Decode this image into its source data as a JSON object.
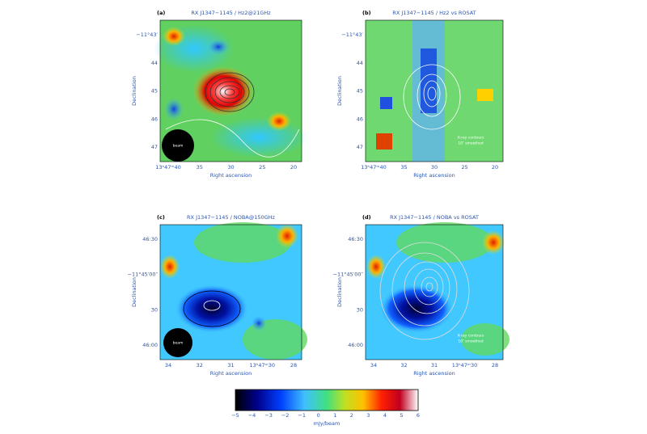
{
  "panels": [
    {
      "label": "(a)",
      "title": "RX J1347−1145 / Hz2@21GHz",
      "xlabel": "Right ascension",
      "ylabel": "Declination",
      "xticks": [
        "13ʰ47ᵐ40",
        "35",
        "30",
        "25",
        "20"
      ],
      "yticks": [
        "−11°43′",
        "44",
        "45",
        "46",
        "47"
      ],
      "notes": [
        "beam"
      ]
    },
    {
      "label": "(b)",
      "title": "RX J1347−1145 / Hz2 vs ROSAT",
      "xlabel": "Right ascension",
      "ylabel": "Declination",
      "xticks": [
        "13ʰ47ᵐ40",
        "35",
        "30",
        "25",
        "20"
      ],
      "yticks": [
        "−11°43′",
        "44",
        "45",
        "46",
        "47"
      ],
      "notes": [
        "X-ray contours",
        "10″ smoothed"
      ]
    },
    {
      "label": "(c)",
      "title": "RX J1347−1145 / NOBA@150GHz",
      "xlabel": "Right ascension",
      "ylabel": "Declination",
      "xticks": [
        "34",
        "32",
        "31",
        "13ʰ47ᵐ30",
        "28"
      ],
      "yticks": [
        "46:30",
        "−11°45′00″",
        "30",
        "46:00"
      ],
      "notes": [
        "beam"
      ]
    },
    {
      "label": "(d)",
      "title": "RX J1347−1145 / NOBA vs ROSAT",
      "xlabel": "Right ascension",
      "ylabel": "Declination",
      "xticks": [
        "34",
        "32",
        "31",
        "13ʰ47ᵐ30",
        "28"
      ],
      "yticks": [
        "46:30",
        "−11°45′00″",
        "30",
        "46:00"
      ],
      "notes": [
        "X-ray contours",
        "10″ smoothed"
      ]
    }
  ],
  "colorbar": {
    "ticks": [
      "−5",
      "−4",
      "−3",
      "−2",
      "−1",
      "0",
      "1",
      "2",
      "3",
      "4",
      "5",
      "6"
    ],
    "label": "mJy/beam"
  }
}
